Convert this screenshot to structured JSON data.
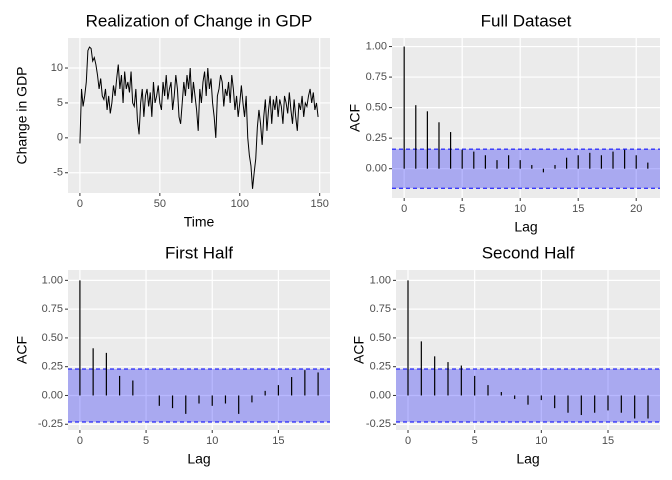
{
  "chart_data": [
    {
      "type": "line",
      "title": "Realization of Change in GDP",
      "xlabel": "Time",
      "ylabel": "Change in GDP",
      "color": "#000000",
      "x": [
        0,
        1,
        2,
        3,
        4,
        5,
        6,
        7,
        8,
        9,
        10,
        11,
        12,
        13,
        14,
        15,
        16,
        17,
        18,
        19,
        20,
        21,
        22,
        23,
        24,
        25,
        26,
        27,
        28,
        29,
        30,
        31,
        32,
        33,
        34,
        35,
        36,
        37,
        38,
        39,
        40,
        41,
        42,
        43,
        44,
        45,
        46,
        47,
        48,
        49,
        50,
        51,
        52,
        53,
        54,
        55,
        56,
        57,
        58,
        59,
        60,
        61,
        62,
        63,
        64,
        65,
        66,
        67,
        68,
        69,
        70,
        71,
        72,
        73,
        74,
        75,
        76,
        77,
        78,
        79,
        80,
        81,
        82,
        83,
        84,
        85,
        86,
        87,
        88,
        89,
        90,
        91,
        92,
        93,
        94,
        95,
        96,
        97,
        98,
        99,
        100,
        101,
        102,
        103,
        104,
        105,
        106,
        107,
        108,
        109,
        110,
        111,
        112,
        113,
        114,
        115,
        116,
        117,
        118,
        119,
        120,
        121,
        122,
        123,
        124,
        125,
        126,
        127,
        128,
        129,
        130,
        131,
        132,
        133,
        134,
        135,
        136,
        137,
        138,
        139,
        140,
        141,
        142,
        143,
        144,
        145,
        146,
        147,
        148,
        149
      ],
      "values": [
        -0.8,
        7,
        4.5,
        6,
        8,
        12.5,
        13,
        12.8,
        11,
        11.5,
        10.5,
        9,
        7,
        8.5,
        6,
        5.5,
        7,
        4,
        6,
        3.5,
        5,
        7.5,
        6,
        8.5,
        10.5,
        7,
        9,
        5,
        9.5,
        7,
        8,
        6.5,
        9.5,
        5,
        4.5,
        7,
        2.5,
        0.5,
        5,
        7,
        3,
        6,
        7,
        4.5,
        6.5,
        3,
        8,
        5,
        6,
        7.5,
        5,
        4,
        8,
        6,
        9,
        5.5,
        7,
        8,
        4,
        6,
        9,
        7,
        3,
        2,
        5,
        8,
        6,
        9,
        7,
        10,
        5,
        8,
        6,
        4,
        1,
        7,
        5,
        8,
        9.5,
        6,
        10,
        7,
        8.5,
        5,
        3,
        0,
        6,
        7,
        9,
        8,
        4.5,
        7,
        6,
        8,
        5,
        9,
        7,
        4,
        6,
        3,
        5,
        7.5,
        5,
        3,
        6,
        0,
        -2.5,
        -4,
        -7.3,
        -5,
        -3,
        1.5,
        4,
        2,
        -1,
        3,
        5.5,
        1,
        4,
        6,
        2,
        5.5,
        4,
        6,
        3,
        5.5,
        4.5,
        2,
        6,
        5,
        3.5,
        6.5,
        4,
        2,
        5.5,
        3,
        1,
        5,
        4,
        6,
        3,
        5,
        4.5,
        6,
        7,
        5,
        6.5,
        4,
        5,
        3
      ],
      "xlim": [
        -7.45,
        156.45
      ],
      "ylim": [
        -7.9,
        14.3
      ],
      "xticks": [
        0,
        50,
        100,
        150
      ],
      "yticks": [
        -5,
        0,
        5,
        10
      ],
      "grid": true
    },
    {
      "type": "acf",
      "title": "Full Dataset",
      "xlabel": "Lag",
      "ylabel": "ACF",
      "color": "#000000",
      "ci_color": "#0000ff",
      "x": [
        0,
        1,
        2,
        3,
        4,
        5,
        6,
        7,
        8,
        9,
        10,
        11,
        12,
        13,
        14,
        15,
        16,
        17,
        18,
        19,
        20,
        21
      ],
      "values": [
        1,
        0.52,
        0.47,
        0.38,
        0.3,
        0.155,
        0.14,
        0.11,
        0.07,
        0.11,
        0.07,
        0.03,
        -0.03,
        0.03,
        0.09,
        0.11,
        0.13,
        0.11,
        0.14,
        0.155,
        0.11,
        0.05
      ],
      "ci": [
        -0.16,
        0.16
      ],
      "xlim": [
        -1.05,
        22.05
      ],
      "ylim": [
        -0.24,
        1.07
      ],
      "xticks": [
        0,
        5,
        10,
        15,
        20
      ],
      "yticks": [
        {
          "value": 0,
          "label": "0.00"
        },
        {
          "value": 0.25,
          "label": "0.25"
        },
        {
          "value": 0.5,
          "label": "0.50"
        },
        {
          "value": 0.75,
          "label": "0.75"
        },
        {
          "value": 1,
          "label": "1.00"
        }
      ],
      "grid": true
    },
    {
      "type": "acf",
      "title": "First Half",
      "xlabel": "Lag",
      "ylabel": "ACF",
      "color": "#000000",
      "ci_color": "#0000ff",
      "x": [
        0,
        1,
        2,
        3,
        4,
        5,
        6,
        7,
        8,
        9,
        10,
        11,
        12,
        13,
        14,
        15,
        16,
        17,
        18
      ],
      "values": [
        1,
        0.41,
        0.37,
        0.17,
        0.13,
        0,
        -0.09,
        -0.11,
        -0.16,
        -0.07,
        -0.09,
        -0.07,
        -0.16,
        -0.06,
        0.04,
        0.09,
        0.16,
        0.22,
        0.2
      ],
      "ci": [
        -0.23,
        0.23
      ],
      "xlim": [
        -0.9,
        18.9
      ],
      "ylim": [
        -0.3,
        1.09
      ],
      "xticks": [
        0,
        5,
        10,
        15
      ],
      "yticks": [
        {
          "value": -0.25,
          "label": "-0.25"
        },
        {
          "value": 0,
          "label": "0.00"
        },
        {
          "value": 0.25,
          "label": "0.25"
        },
        {
          "value": 0.5,
          "label": "0.50"
        },
        {
          "value": 0.75,
          "label": "0.75"
        },
        {
          "value": 1,
          "label": "1.00"
        }
      ],
      "grid": true
    },
    {
      "type": "acf",
      "title": "Second Half",
      "xlabel": "Lag",
      "ylabel": "ACF",
      "color": "#000000",
      "ci_color": "#0000ff",
      "x": [
        0,
        1,
        2,
        3,
        4,
        5,
        6,
        7,
        8,
        9,
        10,
        11,
        12,
        13,
        14,
        15,
        16,
        17,
        18
      ],
      "values": [
        1,
        0.47,
        0.34,
        0.29,
        0.26,
        0.17,
        0.09,
        0.03,
        -0.03,
        -0.08,
        -0.04,
        -0.11,
        -0.15,
        -0.17,
        -0.15,
        -0.13,
        -0.15,
        -0.2,
        -0.2
      ],
      "ci": [
        -0.23,
        0.23
      ],
      "xlim": [
        -0.9,
        18.9
      ],
      "ylim": [
        -0.3,
        1.09
      ],
      "xticks": [
        0,
        5,
        10,
        15
      ],
      "yticks": [
        {
          "value": -0.25,
          "label": "-0.25"
        },
        {
          "value": 0,
          "label": "0.00"
        },
        {
          "value": 0.25,
          "label": "0.25"
        },
        {
          "value": 0.5,
          "label": "0.50"
        },
        {
          "value": 0.75,
          "label": "0.75"
        },
        {
          "value": 1,
          "label": "1.00"
        }
      ],
      "grid": true
    }
  ]
}
